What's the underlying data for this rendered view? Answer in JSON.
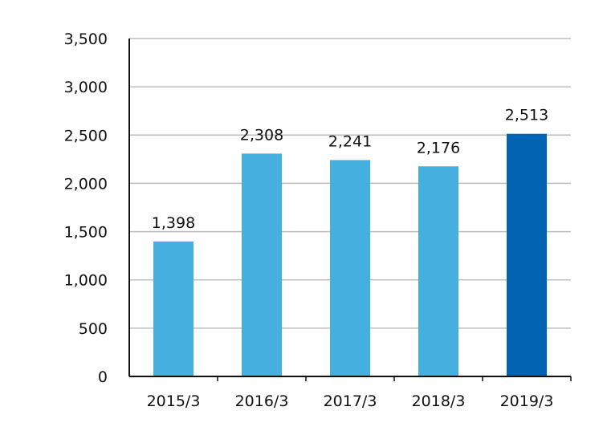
{
  "chart_data": {
    "type": "bar",
    "title": "",
    "xlabel": "",
    "ylabel": "",
    "categories": [
      "2015/3",
      "2016/3",
      "2017/3",
      "2018/3",
      "2019/3"
    ],
    "values": [
      1398,
      2308,
      2241,
      2176,
      2513
    ],
    "data_labels": [
      "1,398",
      "2,308",
      "2,241",
      "2,176",
      "2,513"
    ],
    "ylim": [
      0,
      3500
    ],
    "yticks": [
      0,
      500,
      1000,
      1500,
      2000,
      2500,
      3000,
      3500
    ],
    "ytick_labels": [
      "0",
      "500",
      "1,000",
      "1,500",
      "2,000",
      "2,500",
      "3,000",
      "3,500"
    ],
    "grid": true,
    "legend": "none",
    "colors": {
      "bar": "#45afdf",
      "highlight_bar": "#0064b2",
      "grid": "#bdbdbd",
      "axis": "#111111"
    },
    "highlight_index": 4
  }
}
